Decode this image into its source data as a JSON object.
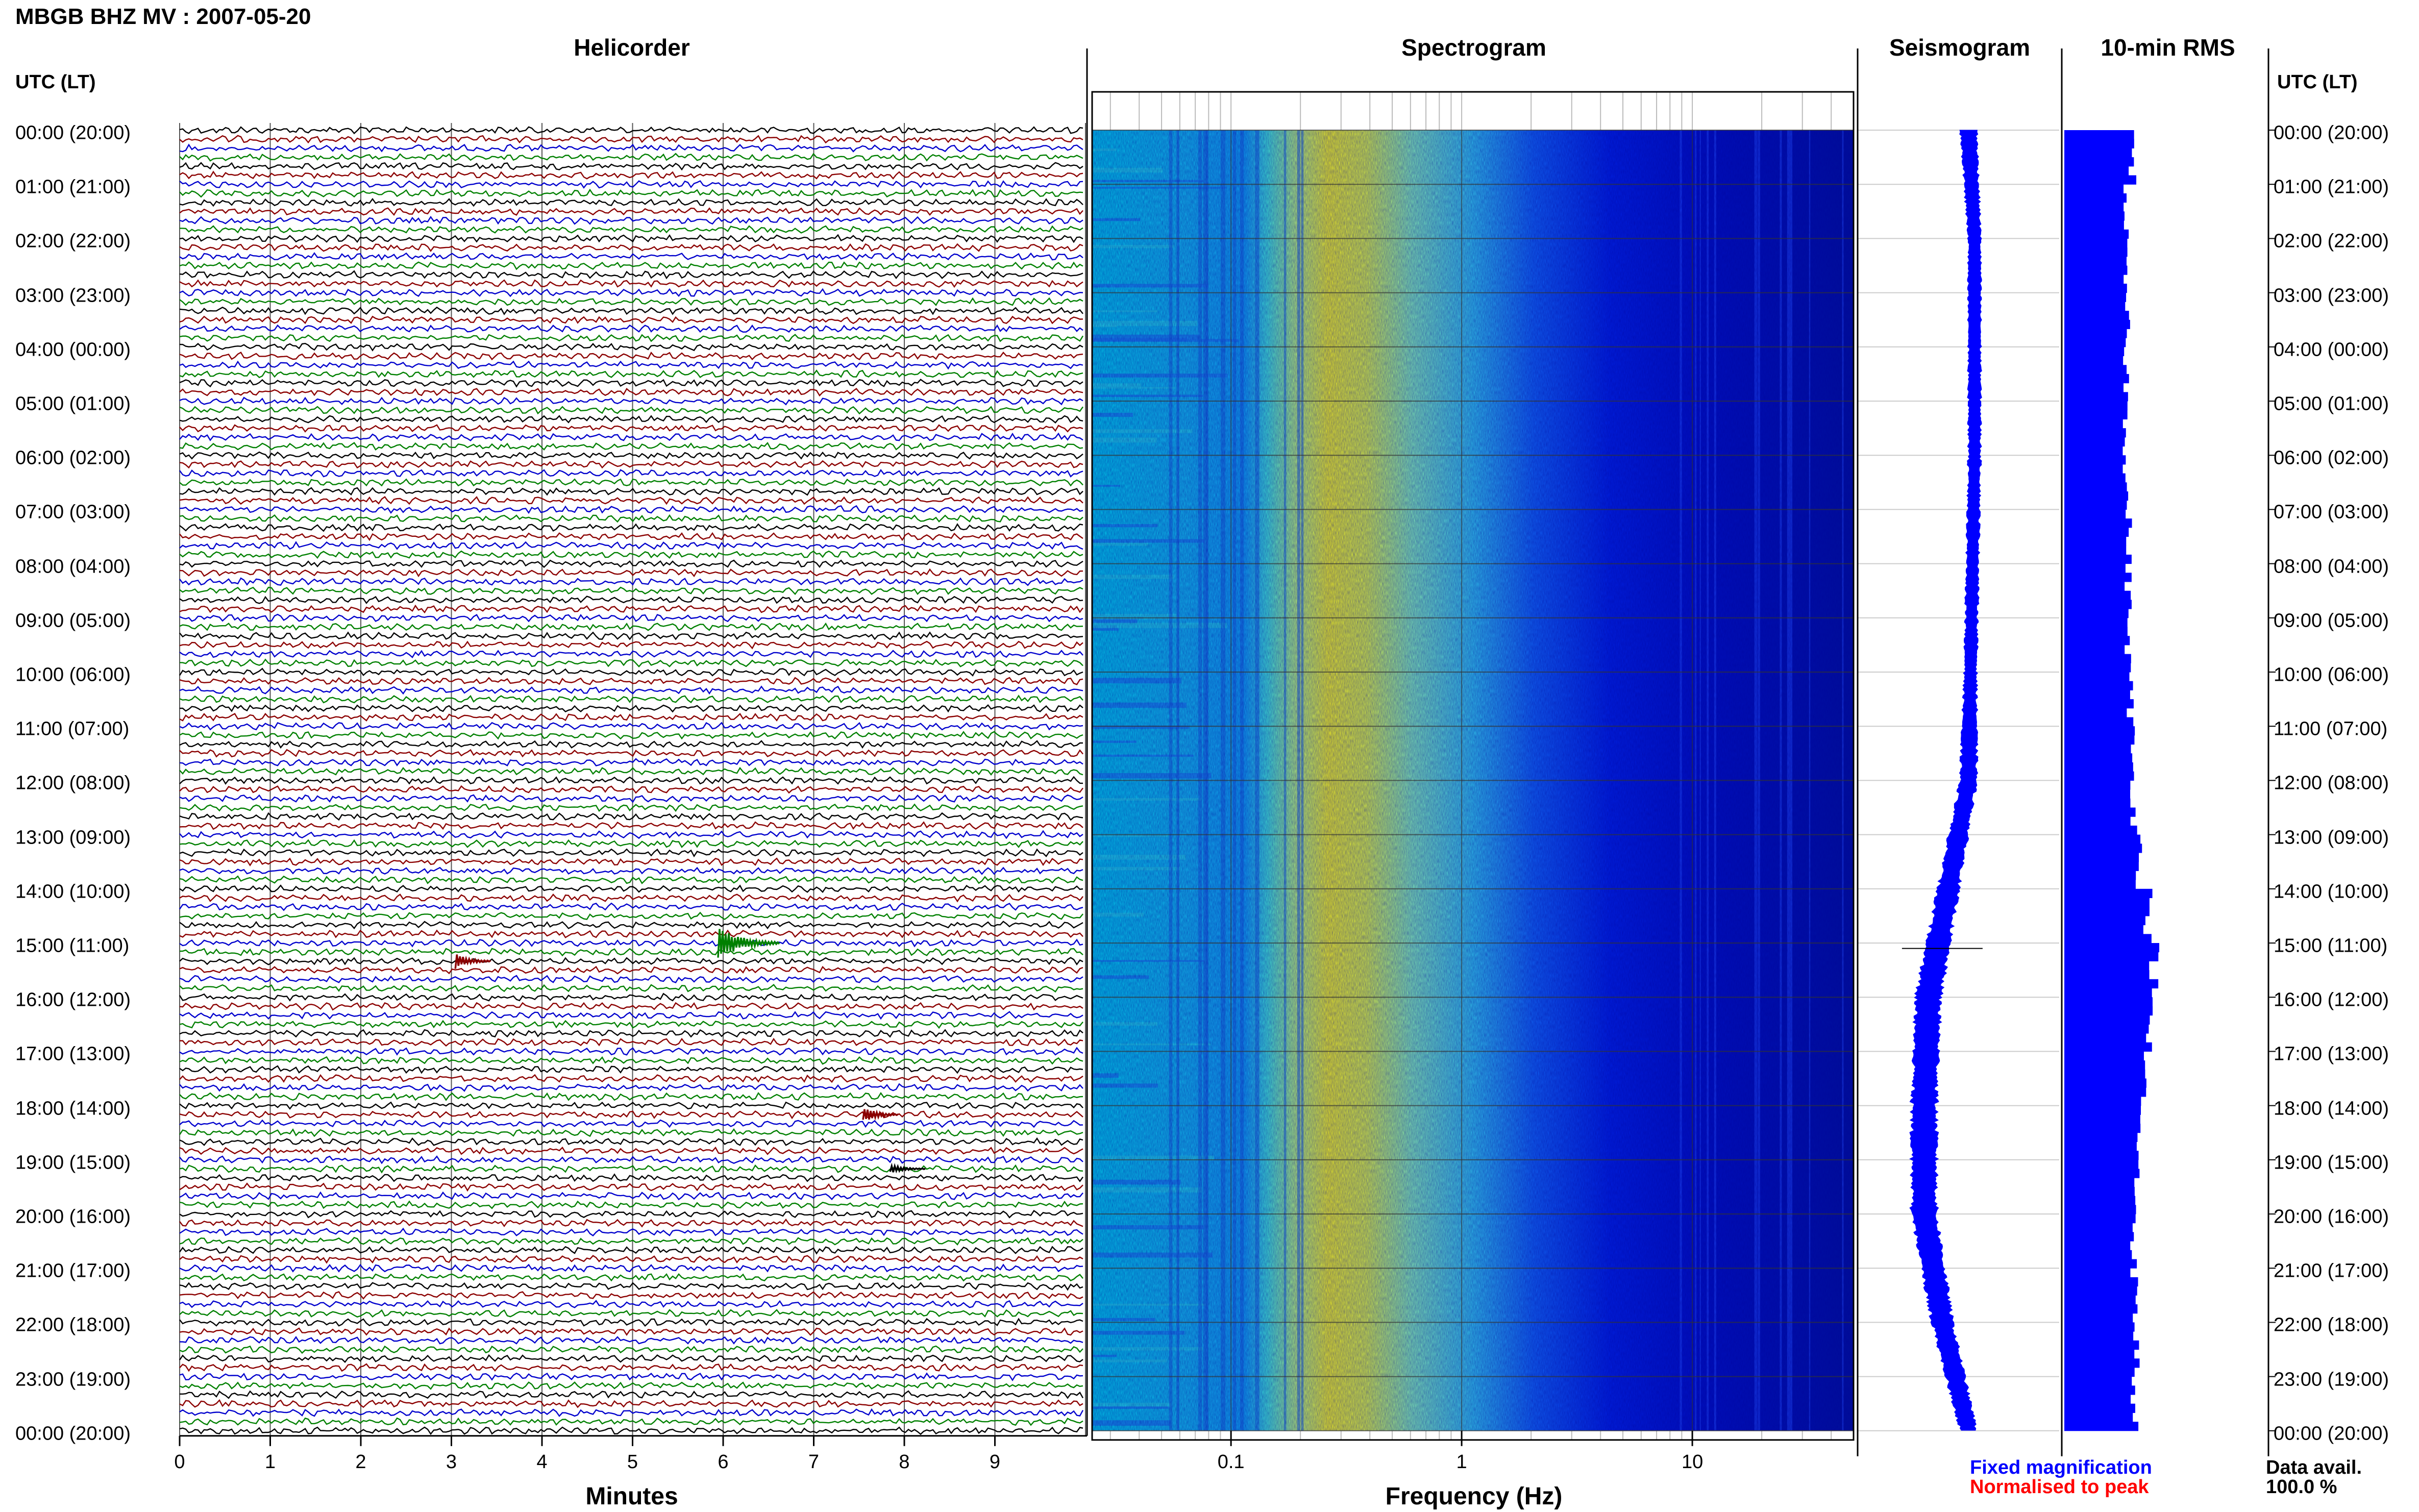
{
  "figure": {
    "title": "MBGB BHZ MV : 2007-05-20"
  },
  "panels": {
    "helicorder": "Helicorder",
    "spectrogram": "Spectrogram",
    "seismogram": "Seismogram",
    "rms": "10-min RMS"
  },
  "time_axis": {
    "header_left": "UTC (LT)",
    "header_right": "UTC (LT)",
    "labels": [
      "00:00 (20:00)",
      "01:00 (21:00)",
      "02:00 (22:00)",
      "03:00 (23:00)",
      "04:00 (00:00)",
      "05:00 (01:00)",
      "06:00 (02:00)",
      "07:00 (03:00)",
      "08:00 (04:00)",
      "09:00 (05:00)",
      "10:00 (06:00)",
      "11:00 (07:00)",
      "12:00 (08:00)",
      "13:00 (09:00)",
      "14:00 (10:00)",
      "15:00 (11:00)",
      "16:00 (12:00)",
      "17:00 (13:00)",
      "18:00 (14:00)",
      "19:00 (15:00)",
      "20:00 (16:00)",
      "21:00 (17:00)",
      "22:00 (18:00)",
      "23:00 (19:00)",
      "00:00 (20:00)"
    ]
  },
  "legend": {
    "fixed": "Fixed magnification",
    "normalised": "Normalised to peak",
    "fixed_color": "#0000ff",
    "normalised_color": "#ff0000"
  },
  "availability": {
    "label": "Data avail.",
    "value": "100.0 %"
  },
  "chart_data": [
    {
      "type": "line",
      "panel": "helicorder",
      "xlabel": "Minutes",
      "x_ticks": [
        "0",
        "1",
        "2",
        "3",
        "4",
        "5",
        "6",
        "7",
        "8",
        "9"
      ],
      "xlim": [
        0,
        10
      ],
      "rows_per_hour": 6,
      "trace_colors": [
        "#000000",
        "#8b0000",
        "#0000cd",
        "#008000"
      ],
      "events": [
        {
          "time_utc": "15:00",
          "minute": 6.0,
          "color": "#008000",
          "amplitude": "large"
        },
        {
          "time_utc": "15:20",
          "minute": 3.1,
          "color": "#8b0000",
          "amplitude": "medium"
        },
        {
          "time_utc": "18:10",
          "minute": 7.6,
          "color": "#8b0000",
          "amplitude": "medium"
        },
        {
          "time_utc": "19:10",
          "minute": 7.9,
          "color": "#000000",
          "amplitude": "small"
        }
      ]
    },
    {
      "type": "heatmap",
      "panel": "spectrogram",
      "xlabel": "Frequency (Hz)",
      "x_scale": "log",
      "x_ticks": [
        "0.1",
        "1",
        "10"
      ],
      "xlim": [
        0.025,
        50
      ],
      "peak_band_hz": [
        0.2,
        0.5
      ],
      "colormap": [
        "#00008b",
        "#0000ff",
        "#1e90ff",
        "#00ced1",
        "#7fffd4",
        "#ffff00"
      ]
    },
    {
      "type": "line",
      "panel": "seismogram",
      "description_values": "trend_by_hour",
      "hours": [
        0,
        2,
        4,
        6,
        8,
        10,
        12,
        14,
        16,
        18,
        20,
        22,
        24
      ],
      "offset": [
        0.55,
        0.58,
        0.58,
        0.58,
        0.57,
        0.56,
        0.55,
        0.45,
        0.35,
        0.33,
        0.33,
        0.42,
        0.55
      ],
      "halfwidth": [
        0.04,
        0.03,
        0.03,
        0.03,
        0.03,
        0.03,
        0.04,
        0.05,
        0.06,
        0.06,
        0.06,
        0.05,
        0.04
      ]
    },
    {
      "type": "bar",
      "panel": "rms",
      "orientation": "horizontal",
      "interval_minutes": 10,
      "hours": [
        0,
        1,
        2,
        3,
        4,
        5,
        6,
        7,
        8,
        9,
        10,
        11,
        12,
        13,
        14,
        15,
        16,
        17,
        18,
        19,
        20,
        21,
        22,
        23
      ],
      "values": [
        0.34,
        0.31,
        0.3,
        0.31,
        0.31,
        0.31,
        0.31,
        0.32,
        0.32,
        0.32,
        0.33,
        0.34,
        0.35,
        0.38,
        0.42,
        0.45,
        0.42,
        0.4,
        0.37,
        0.36,
        0.35,
        0.35,
        0.36,
        0.35
      ],
      "spike": {
        "time_utc": "15:10",
        "value": 0.42
      },
      "xlim": [
        0,
        1
      ]
    }
  ]
}
